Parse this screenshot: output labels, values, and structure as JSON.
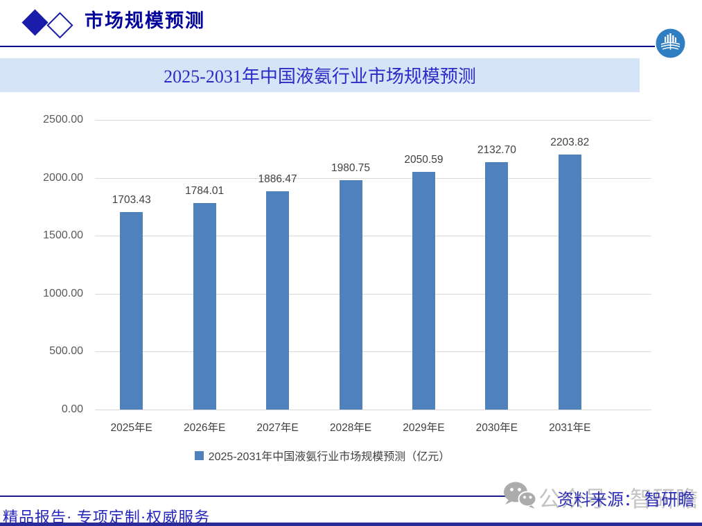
{
  "header": {
    "section_title": "市场规模预测"
  },
  "banner": {
    "title": "2025-2031年中国液氨行业市场规模预测"
  },
  "chart_data": {
    "type": "bar",
    "title": "2025-2031年中国液氨行业市场规模预测",
    "categories": [
      "2025年E",
      "2026年E",
      "2027年E",
      "2028年E",
      "2029年E",
      "2030年E",
      "2031年E"
    ],
    "values": [
      1703.43,
      1784.01,
      1886.47,
      1980.75,
      2050.59,
      2132.7,
      2203.82
    ],
    "value_labels": [
      "1703.43",
      "1784.01",
      "1886.47",
      "1980.75",
      "2050.59",
      "2132.70",
      "2203.82"
    ],
    "ylim": [
      0,
      2500
    ],
    "ytick_step": 500,
    "ytick_labels": [
      "2500.00",
      "2000.00",
      "1500.00",
      "1000.00",
      "500.00",
      "0.00"
    ],
    "grid": true,
    "legend": {
      "label": "2025-2031年中国液氨行业市场规模预测（亿元）",
      "position": "bottom"
    },
    "bar_color": "#4F81BD",
    "gridline_color": "#D9D9D9"
  },
  "watermark": {
    "text": "公众号：智研瞻",
    "icon": "wechat-icon"
  },
  "source": {
    "text": "资料来源： 智研瞻"
  },
  "footer": {
    "text": "精品报告· 专项定制·权威服务"
  },
  "colors": {
    "accent_navy": "#00008B",
    "banner_bg": "#D6E4F8",
    "banner_text": "#2B2BC8",
    "bar_blue": "#4F81BD",
    "logo_blue": "#2F7EC2",
    "watermark_gray": "#C4C4C4"
  }
}
